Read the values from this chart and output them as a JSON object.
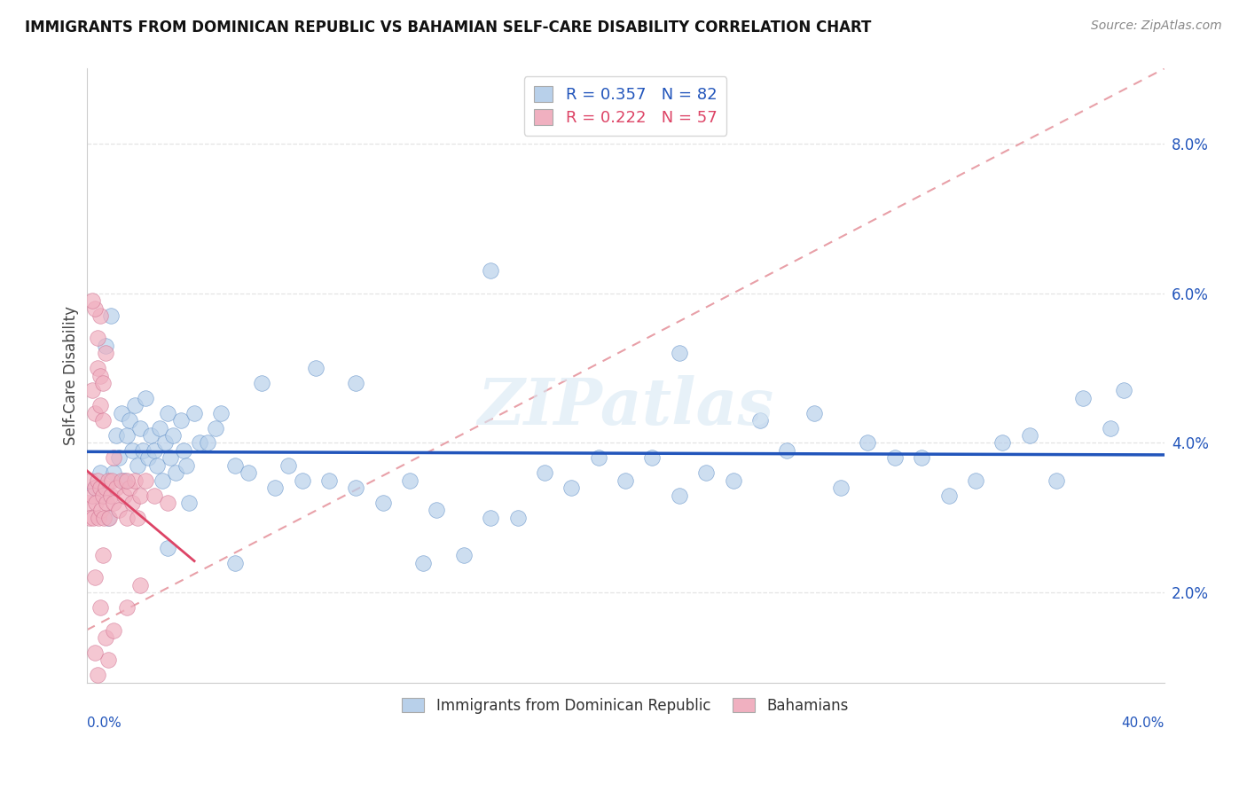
{
  "title": "IMMIGRANTS FROM DOMINICAN REPUBLIC VS BAHAMIAN SELF-CARE DISABILITY CORRELATION CHART",
  "source": "Source: ZipAtlas.com",
  "ylabel": "Self-Care Disability",
  "xlim": [
    0.0,
    40.0
  ],
  "ylim": [
    0.8,
    9.0
  ],
  "yticks": [
    2.0,
    4.0,
    6.0,
    8.0
  ],
  "ytick_labels": [
    "2.0%",
    "4.0%",
    "6.0%",
    "8.0%"
  ],
  "xtick_left": "0.0%",
  "xtick_right": "40.0%",
  "legend_blue_r": "0.357",
  "legend_blue_n": "82",
  "legend_pink_r": "0.222",
  "legend_pink_n": "57",
  "blue_face": "#b8d0ea",
  "blue_edge": "#6090c8",
  "pink_face": "#f0b0c0",
  "pink_edge": "#d07090",
  "trend_blue": "#2255bb",
  "trend_pink": "#dd4466",
  "diag_color": "#e8a0a8",
  "grid_color": "#e4e4e4",
  "watermark": "ZIPatlas",
  "blue_scatter_x": [
    0.3,
    0.5,
    0.7,
    0.8,
    0.9,
    1.0,
    1.1,
    1.2,
    1.3,
    1.4,
    1.5,
    1.6,
    1.7,
    1.8,
    1.9,
    2.0,
    2.1,
    2.2,
    2.3,
    2.4,
    2.5,
    2.6,
    2.7,
    2.8,
    2.9,
    3.0,
    3.1,
    3.2,
    3.3,
    3.5,
    3.6,
    3.7,
    4.0,
    4.2,
    4.5,
    4.8,
    5.0,
    5.5,
    6.0,
    6.5,
    7.0,
    7.5,
    8.0,
    9.0,
    10.0,
    11.0,
    12.0,
    13.0,
    14.0,
    15.0,
    16.0,
    17.0,
    18.0,
    19.0,
    20.0,
    21.0,
    22.0,
    23.0,
    24.0,
    25.0,
    26.0,
    27.0,
    28.0,
    29.0,
    30.0,
    31.0,
    32.0,
    33.0,
    34.0,
    35.0,
    36.0,
    37.0,
    38.0,
    38.5,
    10.0,
    8.5,
    5.5,
    12.5,
    22.0,
    15.0,
    3.0,
    3.8
  ],
  "blue_scatter_y": [
    3.4,
    3.6,
    5.3,
    3.0,
    5.7,
    3.6,
    4.1,
    3.8,
    4.4,
    3.5,
    4.1,
    4.3,
    3.9,
    4.5,
    3.7,
    4.2,
    3.9,
    4.6,
    3.8,
    4.1,
    3.9,
    3.7,
    4.2,
    3.5,
    4.0,
    4.4,
    3.8,
    4.1,
    3.6,
    4.3,
    3.9,
    3.7,
    4.4,
    4.0,
    4.0,
    4.2,
    4.4,
    3.7,
    3.6,
    4.8,
    3.4,
    3.7,
    3.5,
    3.5,
    3.4,
    3.2,
    3.5,
    3.1,
    2.5,
    3.0,
    3.0,
    3.6,
    3.4,
    3.8,
    3.5,
    3.8,
    3.3,
    3.6,
    3.5,
    4.3,
    3.9,
    4.4,
    3.4,
    4.0,
    3.8,
    3.8,
    3.3,
    3.5,
    4.0,
    4.1,
    3.5,
    4.6,
    4.2,
    4.7,
    4.8,
    5.0,
    2.4,
    2.4,
    5.2,
    6.3,
    2.6,
    3.2
  ],
  "pink_scatter_x": [
    0.05,
    0.1,
    0.15,
    0.2,
    0.25,
    0.3,
    0.35,
    0.4,
    0.45,
    0.5,
    0.55,
    0.6,
    0.65,
    0.7,
    0.75,
    0.8,
    0.85,
    0.9,
    0.95,
    1.0,
    1.1,
    1.2,
    1.3,
    1.4,
    1.5,
    1.6,
    1.7,
    1.8,
    1.9,
    2.0,
    2.2,
    2.5,
    3.0,
    0.2,
    0.3,
    0.4,
    0.5,
    0.6,
    0.7,
    0.3,
    0.4,
    0.5,
    0.2,
    1.0,
    1.5,
    0.5,
    0.6,
    0.3,
    0.5,
    0.7,
    0.8,
    1.0,
    1.5,
    2.0,
    0.3,
    0.4,
    0.6
  ],
  "pink_scatter_y": [
    3.2,
    3.0,
    3.5,
    3.3,
    3.0,
    3.4,
    3.2,
    3.5,
    3.0,
    3.4,
    3.1,
    3.3,
    3.0,
    3.4,
    3.2,
    3.5,
    3.0,
    3.3,
    3.5,
    3.2,
    3.4,
    3.1,
    3.5,
    3.3,
    3.0,
    3.4,
    3.2,
    3.5,
    3.0,
    3.3,
    3.5,
    3.3,
    3.2,
    4.7,
    4.4,
    5.0,
    5.7,
    4.3,
    5.2,
    5.8,
    5.4,
    4.9,
    5.9,
    3.8,
    3.5,
    4.5,
    4.8,
    2.2,
    1.8,
    1.4,
    1.1,
    1.5,
    1.8,
    2.1,
    1.2,
    0.9,
    2.5
  ]
}
